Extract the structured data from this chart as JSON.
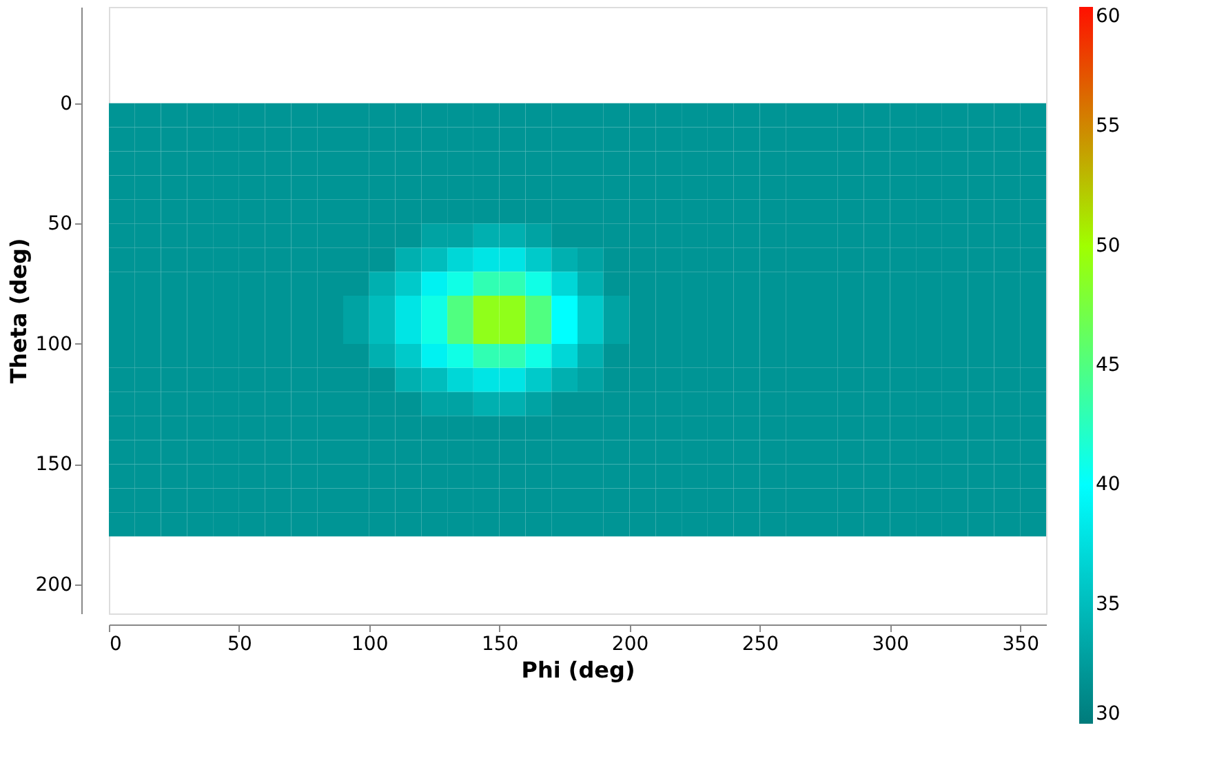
{
  "chart_data": {
    "type": "heatmap",
    "xlabel": "Phi (deg)",
    "ylabel": "Theta (deg)",
    "x": [
      5,
      15,
      25,
      35,
      45,
      55,
      65,
      75,
      85,
      95,
      105,
      115,
      125,
      135,
      145,
      155,
      165,
      175,
      185,
      195,
      205,
      215,
      225,
      235,
      245,
      255,
      265,
      275,
      285,
      295,
      305,
      315,
      325,
      335,
      345,
      355
    ],
    "y": [
      5,
      15,
      25,
      35,
      45,
      55,
      65,
      75,
      85,
      95,
      105,
      115,
      125,
      135,
      145,
      155,
      165,
      175
    ],
    "cells": [
      [
        32,
        32,
        32,
        32,
        32,
        32,
        32,
        32,
        32,
        32,
        32,
        32,
        32,
        32,
        32,
        32,
        32,
        32,
        32,
        32,
        32,
        32,
        32,
        32,
        32,
        32,
        32,
        32,
        32,
        32,
        32,
        32,
        32,
        32,
        32,
        32
      ],
      [
        32,
        32,
        32,
        32,
        32,
        32,
        32,
        32,
        32,
        32,
        32,
        32,
        32,
        32,
        32,
        32,
        32,
        32,
        32,
        32,
        32,
        32,
        32,
        32,
        32,
        32,
        32,
        32,
        32,
        32,
        32,
        32,
        32,
        32,
        32,
        32
      ],
      [
        32,
        32,
        32,
        32,
        32,
        32,
        32,
        32,
        32,
        32,
        32,
        32,
        32,
        32,
        32,
        32,
        32,
        32,
        32,
        32,
        32,
        32,
        32,
        32,
        32,
        32,
        32,
        32,
        32,
        32,
        32,
        32,
        32,
        32,
        32,
        32
      ],
      [
        32,
        32,
        32,
        32,
        32,
        32,
        32,
        32,
        32,
        32,
        32,
        32,
        32,
        32,
        32,
        32,
        32,
        32,
        32,
        32,
        32,
        32,
        32,
        32,
        32,
        32,
        32,
        32,
        32,
        32,
        32,
        32,
        32,
        32,
        32,
        32
      ],
      [
        32,
        32,
        32,
        32,
        32,
        32,
        32,
        32,
        32,
        32,
        32,
        32,
        32,
        32,
        32,
        32,
        32,
        32,
        32,
        32,
        32,
        32,
        32,
        32,
        32,
        32,
        32,
        32,
        32,
        32,
        32,
        32,
        32,
        32,
        32,
        32
      ],
      [
        32,
        32,
        32,
        32,
        32,
        32,
        32,
        32,
        32,
        32,
        32,
        32,
        33,
        33,
        34,
        34,
        33,
        32,
        32,
        32,
        32,
        32,
        32,
        32,
        32,
        32,
        32,
        32,
        32,
        32,
        32,
        32,
        32,
        32,
        32,
        32
      ],
      [
        32,
        32,
        32,
        32,
        32,
        32,
        32,
        32,
        32,
        32,
        32,
        34,
        35,
        37,
        38,
        38,
        36,
        34,
        33,
        32,
        32,
        32,
        32,
        32,
        32,
        32,
        32,
        32,
        32,
        32,
        32,
        32,
        32,
        32,
        32,
        32
      ],
      [
        32,
        32,
        32,
        32,
        32,
        32,
        32,
        32,
        32,
        32,
        34,
        36,
        39,
        41,
        43,
        43,
        41,
        37,
        34,
        32,
        32,
        32,
        32,
        32,
        32,
        32,
        32,
        32,
        32,
        32,
        32,
        32,
        32,
        32,
        32,
        32
      ],
      [
        32,
        32,
        32,
        32,
        32,
        32,
        32,
        32,
        32,
        33,
        35,
        38,
        41,
        45,
        49,
        49,
        45,
        40,
        36,
        33,
        32,
        32,
        32,
        32,
        32,
        32,
        32,
        32,
        32,
        32,
        32,
        32,
        32,
        32,
        32,
        32
      ],
      [
        32,
        32,
        32,
        32,
        32,
        32,
        32,
        32,
        32,
        33,
        35,
        38,
        41,
        45,
        49,
        49,
        45,
        40,
        36,
        33,
        32,
        32,
        32,
        32,
        32,
        32,
        32,
        32,
        32,
        32,
        32,
        32,
        32,
        32,
        32,
        32
      ],
      [
        32,
        32,
        32,
        32,
        32,
        32,
        32,
        32,
        32,
        32,
        34,
        36,
        39,
        41,
        43,
        43,
        41,
        37,
        34,
        32,
        32,
        32,
        32,
        32,
        32,
        32,
        32,
        32,
        32,
        32,
        32,
        32,
        32,
        32,
        32,
        32
      ],
      [
        32,
        32,
        32,
        32,
        32,
        32,
        32,
        32,
        32,
        32,
        32,
        34,
        35,
        37,
        38,
        38,
        36,
        34,
        33,
        32,
        32,
        32,
        32,
        32,
        32,
        32,
        32,
        32,
        32,
        32,
        32,
        32,
        32,
        32,
        32,
        32
      ],
      [
        32,
        32,
        32,
        32,
        32,
        32,
        32,
        32,
        32,
        32,
        32,
        32,
        33,
        33,
        34,
        34,
        33,
        32,
        32,
        32,
        32,
        32,
        32,
        32,
        32,
        32,
        32,
        32,
        32,
        32,
        32,
        32,
        32,
        32,
        32,
        32
      ],
      [
        32,
        32,
        32,
        32,
        32,
        32,
        32,
        32,
        32,
        32,
        32,
        32,
        32,
        32,
        32,
        32,
        32,
        32,
        32,
        32,
        32,
        32,
        32,
        32,
        32,
        32,
        32,
        32,
        32,
        32,
        32,
        32,
        32,
        32,
        32,
        32
      ],
      [
        32,
        32,
        32,
        32,
        32,
        32,
        32,
        32,
        32,
        32,
        32,
        32,
        32,
        32,
        32,
        32,
        32,
        32,
        32,
        32,
        32,
        32,
        32,
        32,
        32,
        32,
        32,
        32,
        32,
        32,
        32,
        32,
        32,
        32,
        32,
        32
      ],
      [
        32,
        32,
        32,
        32,
        32,
        32,
        32,
        32,
        32,
        32,
        32,
        32,
        32,
        32,
        32,
        32,
        32,
        32,
        32,
        32,
        32,
        32,
        32,
        32,
        32,
        32,
        32,
        32,
        32,
        32,
        32,
        32,
        32,
        32,
        32,
        32
      ],
      [
        32,
        32,
        32,
        32,
        32,
        32,
        32,
        32,
        32,
        32,
        32,
        32,
        32,
        32,
        32,
        32,
        32,
        32,
        32,
        32,
        32,
        32,
        32,
        32,
        32,
        32,
        32,
        32,
        32,
        32,
        32,
        32,
        32,
        32,
        32,
        32
      ],
      [
        32,
        32,
        32,
        32,
        32,
        32,
        32,
        32,
        32,
        32,
        32,
        32,
        32,
        32,
        32,
        32,
        32,
        32,
        32,
        32,
        32,
        32,
        32,
        32,
        32,
        32,
        32,
        32,
        32,
        32,
        32,
        32,
        32,
        32,
        32,
        32
      ]
    ],
    "xlim": [
      0,
      360
    ],
    "xticks": [
      0,
      50,
      100,
      150,
      200,
      250,
      300,
      350
    ],
    "ylim": [
      212,
      -40
    ],
    "yticks": [
      0,
      50,
      100,
      150,
      200
    ],
    "clim": [
      30,
      60
    ],
    "cticks": [
      30,
      35,
      40,
      45,
      50,
      55,
      60
    ],
    "grid": false
  }
}
